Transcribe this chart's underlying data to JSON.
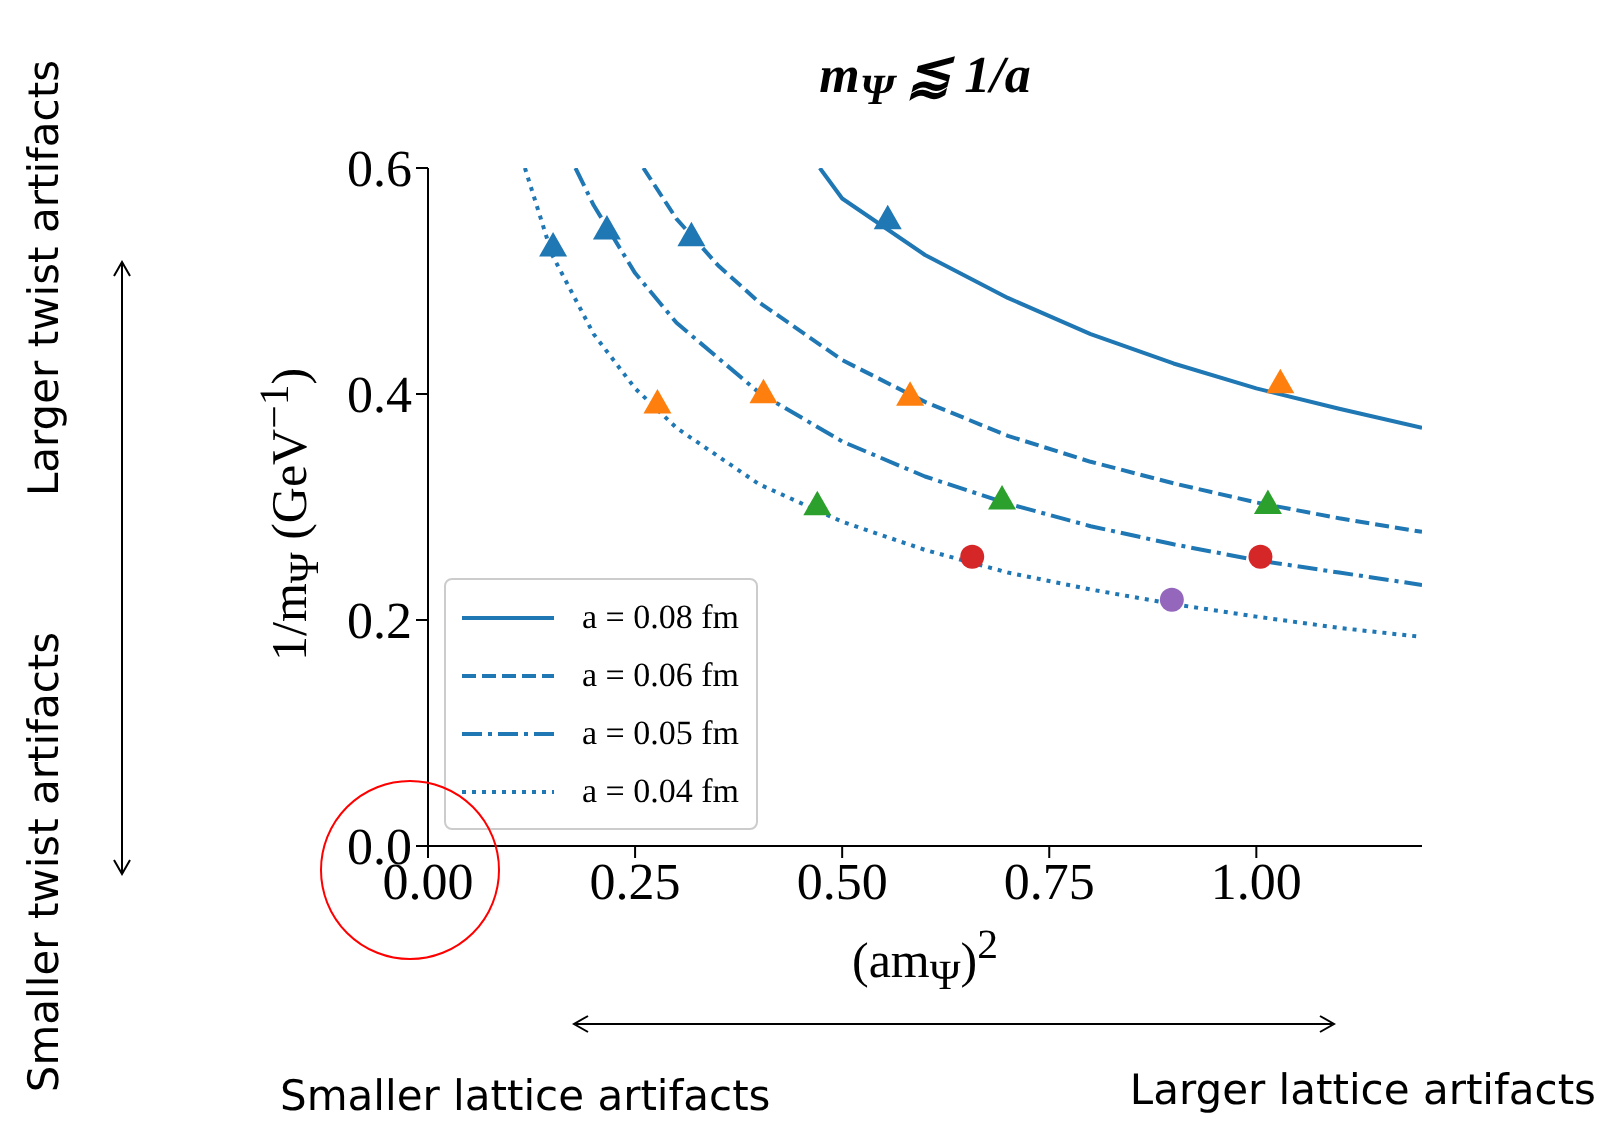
{
  "chart_data": {
    "type": "line",
    "title": "m$_{Ψ}$ ⪅ 1/a",
    "xlabel": "(am$_{Ψ}$)$^{2}$",
    "ylabel": "1/m$_{Ψ}$ (GeV$^{−1}$)",
    "xlim": [
      0,
      1.2
    ],
    "xticks": [
      {
        "value": 0,
        "label": "0.00"
      },
      {
        "value": 0.25,
        "label": "0.25"
      },
      {
        "value": 0.5,
        "label": "0.50"
      },
      {
        "value": 0.75,
        "label": "0.75"
      },
      {
        "value": 1,
        "label": "1.00"
      }
    ],
    "ylim": [
      0,
      0.6
    ],
    "yticks": [
      {
        "value": 0,
        "label": "0.0"
      },
      {
        "value": 0.2,
        "label": "0.2"
      },
      {
        "value": 0.4,
        "label": "0.4"
      },
      {
        "value": 0.6,
        "label": "0.6"
      }
    ],
    "grid": false,
    "legend": "bottom left",
    "annotations": [
      "Larger twist artifacts",
      "Smaller twist artifacts",
      "Smaller lattice artifacts",
      "Larger lattice artifacts"
    ],
    "series": [
      {
        "name": "a = 0.08 fm",
        "color": "#1f77b4",
        "line_style": "solid",
        "marker": "none",
        "x": [
          0.473,
          0.5,
          0.6,
          0.7,
          0.8,
          0.9,
          1.0,
          1.1,
          1.2
        ],
        "values": [
          0.6,
          0.573,
          0.523,
          0.485,
          0.453,
          0.427,
          0.405,
          0.387,
          0.37
        ]
      },
      {
        "name": "a = 0.06 fm",
        "color": "#1f77b4",
        "line_style": "dashed",
        "marker": "none",
        "x": [
          0.26,
          0.3,
          0.35,
          0.4,
          0.5,
          0.6,
          0.7,
          0.8,
          0.9,
          1.0,
          1.1,
          1.2
        ],
        "values": [
          0.6,
          0.555,
          0.514,
          0.481,
          0.43,
          0.393,
          0.363,
          0.34,
          0.321,
          0.304,
          0.29,
          0.278
        ]
      },
      {
        "name": "a = 0.05 fm",
        "color": "#1f77b4",
        "line_style": "dashdot",
        "marker": "none",
        "x": [
          0.178,
          0.2,
          0.25,
          0.3,
          0.4,
          0.5,
          0.6,
          0.7,
          0.8,
          0.9,
          1.0,
          1.1,
          1.2
        ],
        "values": [
          0.6,
          0.567,
          0.507,
          0.463,
          0.401,
          0.358,
          0.327,
          0.303,
          0.283,
          0.267,
          0.253,
          0.242,
          0.231
        ]
      },
      {
        "name": "a = 0.04 fm",
        "color": "#1f77b4",
        "line_style": "dotted",
        "marker": "none",
        "x": [
          0.117,
          0.15,
          0.2,
          0.25,
          0.3,
          0.4,
          0.5,
          0.6,
          0.7,
          0.8,
          0.9,
          1.0,
          1.1,
          1.2
        ],
        "values": [
          0.6,
          0.523,
          0.453,
          0.405,
          0.37,
          0.32,
          0.287,
          0.262,
          0.242,
          0.227,
          0.214,
          0.203,
          0.193,
          0.185
        ]
      },
      {
        "type": "scatter",
        "color": "#1f77b4",
        "marker": "triangle",
        "x": [
          0.151,
          0.216,
          0.318,
          0.555
        ],
        "values": [
          0.531,
          0.546,
          0.54,
          0.555
        ]
      },
      {
        "type": "scatter",
        "color": "#ff7f0e",
        "marker": "triangle",
        "x": [
          0.277,
          0.405,
          0.582,
          1.029
        ],
        "values": [
          0.392,
          0.401,
          0.399,
          0.41
        ]
      },
      {
        "type": "scatter",
        "color": "#2ca02c",
        "marker": "triangle",
        "x": [
          0.47,
          0.693,
          1.014
        ],
        "values": [
          0.302,
          0.307,
          0.303
        ]
      },
      {
        "type": "scatter",
        "color": "#d62728",
        "marker": "circle",
        "x": [
          0.657,
          1.005
        ],
        "values": [
          0.256,
          0.256
        ]
      },
      {
        "type": "scatter",
        "color": "#9467bd",
        "marker": "circle",
        "x": [
          0.898
        ],
        "values": [
          0.218
        ]
      }
    ]
  }
}
